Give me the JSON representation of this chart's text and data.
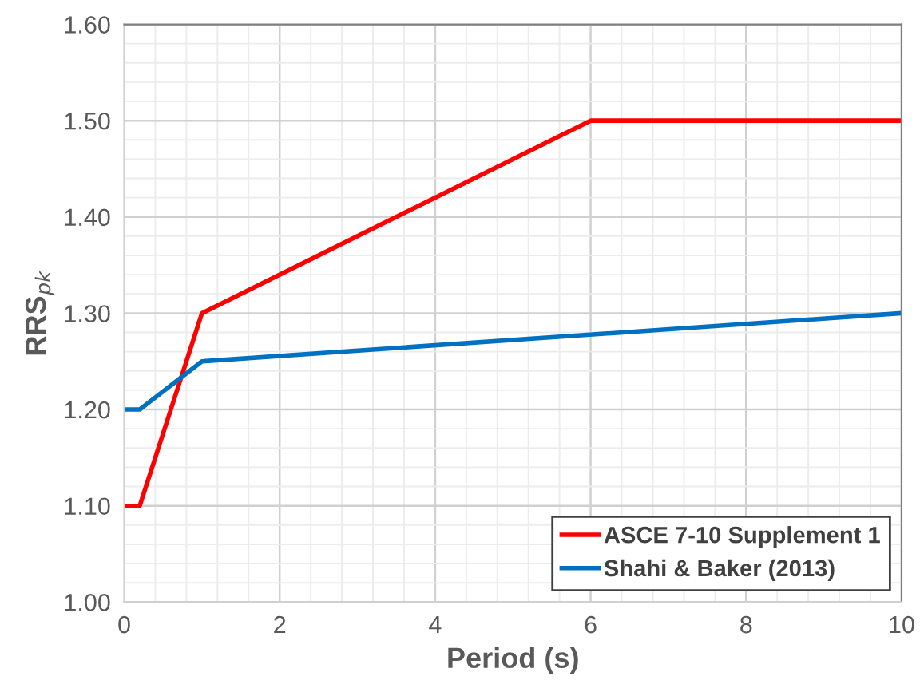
{
  "chart_data": {
    "type": "line",
    "xlabel": "Period (s)",
    "ylabel": "RRS$_{pk}$",
    "series": [
      {
        "name": "ASCE 7-10 Supplement 1",
        "color": "#ff0000",
        "x": [
          0,
          0.2,
          1,
          6,
          10
        ],
        "values": [
          1.1,
          1.1,
          1.3,
          1.5,
          1.5
        ]
      },
      {
        "name": "Shahi & Baker (2013)",
        "color": "#0070c0",
        "x": [
          0,
          0.2,
          1,
          10
        ],
        "values": [
          1.2,
          1.2,
          1.25,
          1.3
        ]
      }
    ],
    "xlim": [
      0,
      10
    ],
    "xticks": [
      0,
      2,
      4,
      6,
      8,
      10
    ],
    "ylim": [
      1.0,
      1.6
    ],
    "yticks": [
      {
        "value": 1.0,
        "label": "1.00"
      },
      {
        "value": 1.1,
        "label": "1.10"
      },
      {
        "value": 1.2,
        "label": "1.20"
      },
      {
        "value": 1.3,
        "label": "1.30"
      },
      {
        "value": 1.4,
        "label": "1.40"
      },
      {
        "value": 1.5,
        "label": "1.50"
      },
      {
        "value": 1.6,
        "label": "1.60"
      }
    ],
    "grid": true,
    "legend": "bottom right",
    "marker": "none",
    "line_style": "solid"
  }
}
